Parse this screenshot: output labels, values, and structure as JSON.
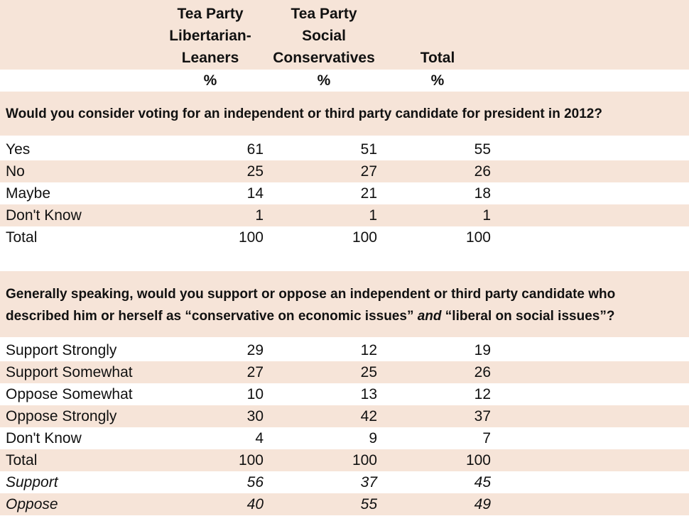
{
  "columns": {
    "c1": [
      "Tea Party",
      "Libertarian-",
      "Leaners"
    ],
    "c2": [
      "Tea Party",
      "Social",
      "Conservatives"
    ],
    "c3": [
      "Total"
    ],
    "pct": "%"
  },
  "q1": {
    "text": "Would you consider voting for an independent or third party candidate for president in 2012?",
    "rows": [
      {
        "label": "Yes",
        "v": [
          "61",
          "51",
          "55"
        ]
      },
      {
        "label": "No",
        "v": [
          "25",
          "27",
          "26"
        ]
      },
      {
        "label": "Maybe",
        "v": [
          "14",
          "21",
          "18"
        ]
      },
      {
        "label": "Don't Know",
        "v": [
          "1",
          "1",
          "1"
        ]
      },
      {
        "label": "Total",
        "v": [
          "100",
          "100",
          "100"
        ]
      }
    ]
  },
  "q2": {
    "line1": "Generally speaking, would you support or oppose an independent or third party candidate who",
    "line2_a": "described him or herself as “conservative on economic issues” ",
    "line2_em": "and",
    "line2_b": " “liberal on social issues”?",
    "rows": [
      {
        "label": "Support Strongly",
        "v": [
          "29",
          "12",
          "19"
        ]
      },
      {
        "label": "Support Somewhat",
        "v": [
          "27",
          "25",
          "26"
        ]
      },
      {
        "label": "Oppose Somewhat",
        "v": [
          "10",
          "13",
          "12"
        ]
      },
      {
        "label": "Oppose Strongly",
        "v": [
          "30",
          "42",
          "37"
        ]
      },
      {
        "label": "Don't Know",
        "v": [
          "4",
          "9",
          "7"
        ]
      },
      {
        "label": "Total",
        "v": [
          "100",
          "100",
          "100"
        ]
      },
      {
        "label": "Support",
        "v": [
          "56",
          "37",
          "45"
        ]
      },
      {
        "label": "Oppose",
        "v": [
          "40",
          "55",
          "49"
        ]
      }
    ]
  },
  "colors": {
    "band": "#f6e4d8",
    "text": "#111111"
  }
}
